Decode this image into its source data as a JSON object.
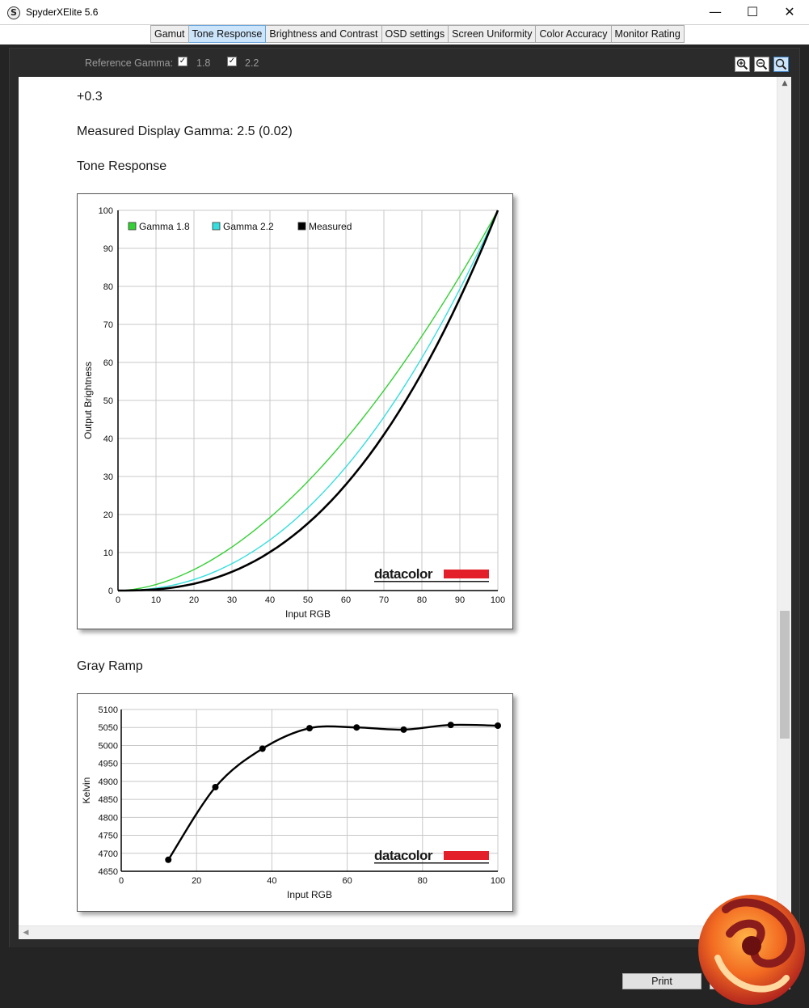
{
  "window": {
    "title": "SpyderXElite 5.6",
    "icon_letter": "S",
    "minimize_glyph": "—",
    "maximize_glyph": "☐",
    "close_glyph": "✕"
  },
  "tabs": [
    {
      "label": "Gamut",
      "active": false
    },
    {
      "label": "Tone Response",
      "active": true
    },
    {
      "label": "Brightness and Contrast",
      "active": false
    },
    {
      "label": "OSD settings",
      "active": false
    },
    {
      "label": "Screen Uniformity",
      "active": false
    },
    {
      "label": "Color Accuracy",
      "active": false
    },
    {
      "label": "Monitor Rating",
      "active": false
    }
  ],
  "toolbar": {
    "reference_gamma_label": "Reference Gamma:",
    "options": [
      {
        "label": "1.8",
        "checked": true
      },
      {
        "label": "2.2",
        "checked": true
      }
    ],
    "zoom_buttons": [
      "zoom-in-icon",
      "zoom-out-icon",
      "zoom-fit-icon"
    ]
  },
  "report": {
    "offset_text": "+0.3",
    "measured_gamma_text": "Measured Display Gamma: 2.5 (0.02)",
    "tone_response_heading": "Tone Response",
    "gray_ramp_heading": "Gray Ramp"
  },
  "footer": {
    "print_label": "Print"
  },
  "chart_data": [
    {
      "type": "line",
      "title": "",
      "xlabel": "Input RGB",
      "ylabel": "Output Brightness",
      "xlim": [
        0,
        100
      ],
      "ylim": [
        0,
        100
      ],
      "xticks": [
        0,
        10,
        20,
        30,
        40,
        50,
        60,
        70,
        80,
        90,
        100
      ],
      "yticks": [
        0,
        10,
        20,
        30,
        40,
        50,
        60,
        70,
        80,
        90,
        100
      ],
      "grid": true,
      "legend_position": "top-left",
      "watermark": "datacolor",
      "series": [
        {
          "name": "Gamma 1.8",
          "color": "#35d035",
          "gamma": 1.8
        },
        {
          "name": "Gamma 2.2",
          "color": "#35dede",
          "gamma": 2.2
        },
        {
          "name": "Measured",
          "color": "#000000",
          "gamma": 2.5
        }
      ]
    },
    {
      "type": "line",
      "title": "",
      "xlabel": "Input RGB",
      "ylabel": "Kelvin",
      "xlim": [
        0,
        100
      ],
      "ylim": [
        4650,
        5100
      ],
      "xticks": [
        0,
        20,
        40,
        60,
        80,
        100
      ],
      "yticks": [
        4650,
        4700,
        4750,
        4800,
        4850,
        4900,
        4950,
        5000,
        5050,
        5100
      ],
      "grid": true,
      "watermark": "datacolor",
      "series": [
        {
          "name": "",
          "color": "#000000",
          "x": [
            12.5,
            25,
            37.5,
            50,
            62.5,
            75,
            87.5,
            100
          ],
          "y": [
            4682,
            4884,
            4991,
            5048,
            5050,
            5044,
            5057,
            5055
          ]
        }
      ]
    }
  ]
}
